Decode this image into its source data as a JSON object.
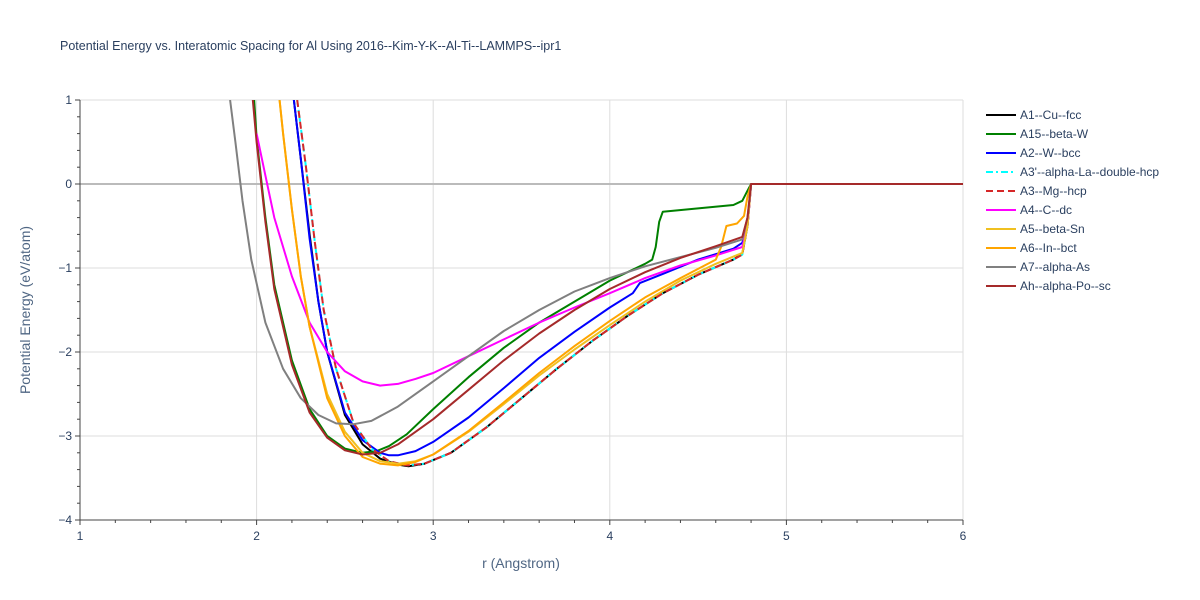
{
  "chart_data": {
    "type": "line",
    "title": "Potential Energy vs. Interatomic Spacing for Al Using 2016--Kim-Y-K--Al-Ti--LAMMPS--ipr1",
    "xlabel": "r (Angstrom)",
    "ylabel": "Potential Energy (eV/atom)",
    "xlim": [
      1,
      6
    ],
    "ylim": [
      -4,
      1
    ],
    "xticks": [
      "1",
      "2",
      "3",
      "4",
      "5",
      "6"
    ],
    "yticks": [
      "1",
      "0",
      "−1",
      "−2",
      "−3",
      "−4"
    ],
    "grid": true,
    "legend_position": "right",
    "series": [
      {
        "name": "A1--Cu--fcc",
        "color": "#000000",
        "dash": "solid",
        "points": [
          [
            2.2,
            1.2
          ],
          [
            2.25,
            0.3
          ],
          [
            2.3,
            -0.6
          ],
          [
            2.35,
            -1.4
          ],
          [
            2.4,
            -2.0
          ],
          [
            2.5,
            -2.75
          ],
          [
            2.6,
            -3.1
          ],
          [
            2.7,
            -3.27
          ],
          [
            2.8,
            -3.34
          ],
          [
            2.86,
            -3.36
          ],
          [
            2.95,
            -3.33
          ],
          [
            3.1,
            -3.2
          ],
          [
            3.3,
            -2.9
          ],
          [
            3.5,
            -2.55
          ],
          [
            3.7,
            -2.2
          ],
          [
            3.9,
            -1.87
          ],
          [
            4.1,
            -1.57
          ],
          [
            4.3,
            -1.3
          ],
          [
            4.5,
            -1.08
          ],
          [
            4.7,
            -0.9
          ],
          [
            4.75,
            -0.83
          ],
          [
            4.78,
            -0.5
          ],
          [
            4.8,
            0
          ],
          [
            5.0,
            0
          ],
          [
            6.0,
            0
          ]
        ]
      },
      {
        "name": "A15--beta-W",
        "color": "#008000",
        "dash": "solid",
        "points": [
          [
            1.98,
            1.2
          ],
          [
            2.0,
            0.55
          ],
          [
            2.05,
            -0.4
          ],
          [
            2.1,
            -1.2
          ],
          [
            2.2,
            -2.1
          ],
          [
            2.3,
            -2.68
          ],
          [
            2.4,
            -3.0
          ],
          [
            2.5,
            -3.15
          ],
          [
            2.6,
            -3.2
          ],
          [
            2.68,
            -3.18
          ],
          [
            2.75,
            -3.12
          ],
          [
            2.85,
            -2.98
          ],
          [
            3.0,
            -2.68
          ],
          [
            3.2,
            -2.3
          ],
          [
            3.4,
            -1.95
          ],
          [
            3.6,
            -1.65
          ],
          [
            3.8,
            -1.4
          ],
          [
            4.0,
            -1.15
          ],
          [
            4.2,
            -0.95
          ],
          [
            4.24,
            -0.9
          ],
          [
            4.26,
            -0.75
          ],
          [
            4.28,
            -0.45
          ],
          [
            4.3,
            -0.33
          ],
          [
            4.5,
            -0.29
          ],
          [
            4.7,
            -0.25
          ],
          [
            4.75,
            -0.2
          ],
          [
            4.78,
            -0.08
          ],
          [
            4.8,
            0
          ],
          [
            6.0,
            0
          ]
        ]
      },
      {
        "name": "A2--W--bcc",
        "color": "#0000ff",
        "dash": "solid",
        "points": [
          [
            2.2,
            1.2
          ],
          [
            2.25,
            0.3
          ],
          [
            2.3,
            -0.65
          ],
          [
            2.35,
            -1.4
          ],
          [
            2.4,
            -2.0
          ],
          [
            2.5,
            -2.72
          ],
          [
            2.6,
            -3.05
          ],
          [
            2.7,
            -3.2
          ],
          [
            2.75,
            -3.23
          ],
          [
            2.8,
            -3.23
          ],
          [
            2.9,
            -3.18
          ],
          [
            3.0,
            -3.07
          ],
          [
            3.2,
            -2.78
          ],
          [
            3.4,
            -2.43
          ],
          [
            3.6,
            -2.07
          ],
          [
            3.8,
            -1.76
          ],
          [
            4.0,
            -1.47
          ],
          [
            4.13,
            -1.3
          ],
          [
            4.17,
            -1.18
          ],
          [
            4.3,
            -1.07
          ],
          [
            4.5,
            -0.9
          ],
          [
            4.7,
            -0.77
          ],
          [
            4.75,
            -0.7
          ],
          [
            4.78,
            -0.5
          ],
          [
            4.8,
            0
          ],
          [
            6.0,
            0
          ]
        ]
      },
      {
        "name": "A3'--alpha-La--double-hcp",
        "color": "#00ffff",
        "dash": "dashdot",
        "points": [
          [
            2.23,
            1.0
          ],
          [
            2.28,
            0.2
          ],
          [
            2.33,
            -0.7
          ],
          [
            2.38,
            -1.5
          ],
          [
            2.45,
            -2.2
          ],
          [
            2.55,
            -2.85
          ],
          [
            2.65,
            -3.15
          ],
          [
            2.75,
            -3.3
          ],
          [
            2.85,
            -3.35
          ],
          [
            2.95,
            -3.33
          ],
          [
            3.1,
            -3.2
          ],
          [
            3.3,
            -2.9
          ],
          [
            3.5,
            -2.55
          ],
          [
            3.7,
            -2.2
          ],
          [
            3.9,
            -1.87
          ],
          [
            4.1,
            -1.57
          ],
          [
            4.3,
            -1.3
          ],
          [
            4.5,
            -1.08
          ],
          [
            4.7,
            -0.9
          ],
          [
            4.75,
            -0.84
          ],
          [
            4.78,
            -0.5
          ],
          [
            4.8,
            0
          ],
          [
            6.0,
            0
          ]
        ]
      },
      {
        "name": "A3--Mg--hcp",
        "color": "#d62728",
        "dash": "dash",
        "points": [
          [
            2.23,
            1.0
          ],
          [
            2.28,
            0.2
          ],
          [
            2.33,
            -0.7
          ],
          [
            2.38,
            -1.5
          ],
          [
            2.45,
            -2.2
          ],
          [
            2.55,
            -2.85
          ],
          [
            2.65,
            -3.15
          ],
          [
            2.75,
            -3.3
          ],
          [
            2.85,
            -3.35
          ],
          [
            2.95,
            -3.33
          ],
          [
            3.1,
            -3.2
          ],
          [
            3.3,
            -2.9
          ],
          [
            3.5,
            -2.55
          ],
          [
            3.7,
            -2.2
          ],
          [
            3.9,
            -1.87
          ],
          [
            4.1,
            -1.57
          ],
          [
            4.3,
            -1.3
          ],
          [
            4.5,
            -1.08
          ],
          [
            4.7,
            -0.9
          ],
          [
            4.75,
            -0.84
          ],
          [
            4.78,
            -0.5
          ],
          [
            4.8,
            0
          ],
          [
            6.0,
            0
          ]
        ]
      },
      {
        "name": "A4--C--dc",
        "color": "#ff00ff",
        "dash": "solid",
        "points": [
          [
            2.0,
            0.6
          ],
          [
            2.05,
            0.1
          ],
          [
            2.1,
            -0.4
          ],
          [
            2.2,
            -1.1
          ],
          [
            2.3,
            -1.65
          ],
          [
            2.4,
            -2.0
          ],
          [
            2.5,
            -2.23
          ],
          [
            2.6,
            -2.35
          ],
          [
            2.7,
            -2.4
          ],
          [
            2.8,
            -2.38
          ],
          [
            2.9,
            -2.32
          ],
          [
            3.0,
            -2.25
          ],
          [
            3.2,
            -2.05
          ],
          [
            3.4,
            -1.85
          ],
          [
            3.6,
            -1.65
          ],
          [
            3.8,
            -1.47
          ],
          [
            4.0,
            -1.3
          ],
          [
            4.2,
            -1.12
          ],
          [
            4.4,
            -0.97
          ],
          [
            4.6,
            -0.85
          ],
          [
            4.75,
            -0.75
          ],
          [
            4.78,
            -0.5
          ],
          [
            4.8,
            0
          ],
          [
            6.0,
            0
          ]
        ]
      },
      {
        "name": "A5--beta-Sn",
        "color": "#f0c020",
        "dash": "solid",
        "points": [
          [
            2.12,
            1.2
          ],
          [
            2.15,
            0.6
          ],
          [
            2.2,
            -0.3
          ],
          [
            2.25,
            -1.1
          ],
          [
            2.3,
            -1.7
          ],
          [
            2.4,
            -2.5
          ],
          [
            2.5,
            -2.95
          ],
          [
            2.6,
            -3.2
          ],
          [
            2.7,
            -3.3
          ],
          [
            2.8,
            -3.33
          ],
          [
            2.9,
            -3.3
          ],
          [
            3.0,
            -3.22
          ],
          [
            3.2,
            -2.95
          ],
          [
            3.4,
            -2.62
          ],
          [
            3.6,
            -2.28
          ],
          [
            3.8,
            -1.97
          ],
          [
            4.0,
            -1.68
          ],
          [
            4.2,
            -1.4
          ],
          [
            4.4,
            -1.15
          ],
          [
            4.6,
            -0.95
          ],
          [
            4.75,
            -0.82
          ],
          [
            4.78,
            -0.5
          ],
          [
            4.8,
            0
          ],
          [
            6.0,
            0
          ]
        ]
      },
      {
        "name": "A6--In--bct",
        "color": "#ffa500",
        "dash": "solid",
        "points": [
          [
            2.12,
            1.2
          ],
          [
            2.15,
            0.6
          ],
          [
            2.2,
            -0.3
          ],
          [
            2.25,
            -1.1
          ],
          [
            2.3,
            -1.7
          ],
          [
            2.4,
            -2.55
          ],
          [
            2.5,
            -3.0
          ],
          [
            2.6,
            -3.25
          ],
          [
            2.7,
            -3.33
          ],
          [
            2.8,
            -3.35
          ],
          [
            2.9,
            -3.31
          ],
          [
            3.0,
            -3.22
          ],
          [
            3.2,
            -2.94
          ],
          [
            3.4,
            -2.6
          ],
          [
            3.6,
            -2.25
          ],
          [
            3.8,
            -1.93
          ],
          [
            4.0,
            -1.63
          ],
          [
            4.2,
            -1.35
          ],
          [
            4.4,
            -1.12
          ],
          [
            4.6,
            -0.9
          ],
          [
            4.63,
            -0.75
          ],
          [
            4.66,
            -0.5
          ],
          [
            4.72,
            -0.47
          ],
          [
            4.76,
            -0.38
          ],
          [
            4.78,
            -0.15
          ],
          [
            4.8,
            0
          ],
          [
            6.0,
            0
          ]
        ]
      },
      {
        "name": "A7--alpha-As",
        "color": "#808080",
        "dash": "solid",
        "points": [
          [
            1.85,
            1.0
          ],
          [
            1.88,
            0.5
          ],
          [
            1.92,
            -0.2
          ],
          [
            1.97,
            -0.9
          ],
          [
            2.05,
            -1.65
          ],
          [
            2.15,
            -2.2
          ],
          [
            2.25,
            -2.55
          ],
          [
            2.35,
            -2.75
          ],
          [
            2.45,
            -2.85
          ],
          [
            2.55,
            -2.86
          ],
          [
            2.65,
            -2.82
          ],
          [
            2.8,
            -2.65
          ],
          [
            3.0,
            -2.35
          ],
          [
            3.2,
            -2.05
          ],
          [
            3.4,
            -1.75
          ],
          [
            3.6,
            -1.5
          ],
          [
            3.8,
            -1.28
          ],
          [
            3.9,
            -1.2
          ],
          [
            4.0,
            -1.12
          ],
          [
            4.2,
            -0.98
          ],
          [
            4.4,
            -0.87
          ],
          [
            4.6,
            -0.76
          ],
          [
            4.75,
            -0.66
          ],
          [
            4.78,
            -0.4
          ],
          [
            4.8,
            0
          ],
          [
            6.0,
            0
          ]
        ]
      },
      {
        "name": "Ah--alpha-Po--sc",
        "color": "#a52a2a",
        "dash": "solid",
        "points": [
          [
            1.97,
            1.2
          ],
          [
            2.0,
            0.5
          ],
          [
            2.05,
            -0.45
          ],
          [
            2.1,
            -1.25
          ],
          [
            2.2,
            -2.15
          ],
          [
            2.3,
            -2.72
          ],
          [
            2.4,
            -3.02
          ],
          [
            2.5,
            -3.17
          ],
          [
            2.6,
            -3.22
          ],
          [
            2.7,
            -3.2
          ],
          [
            2.8,
            -3.1
          ],
          [
            3.0,
            -2.8
          ],
          [
            3.2,
            -2.45
          ],
          [
            3.4,
            -2.1
          ],
          [
            3.6,
            -1.78
          ],
          [
            3.8,
            -1.5
          ],
          [
            4.0,
            -1.25
          ],
          [
            4.2,
            -1.05
          ],
          [
            4.4,
            -0.88
          ],
          [
            4.6,
            -0.74
          ],
          [
            4.75,
            -0.63
          ],
          [
            4.78,
            -0.4
          ],
          [
            4.8,
            0
          ],
          [
            6.0,
            0
          ]
        ]
      }
    ]
  }
}
